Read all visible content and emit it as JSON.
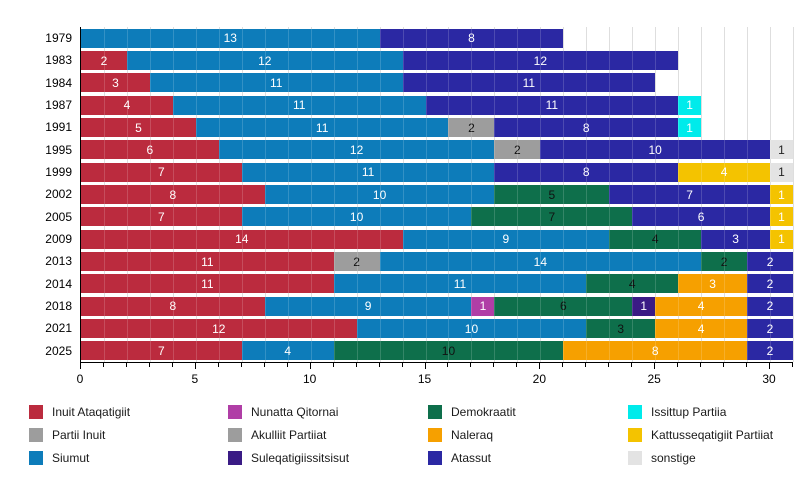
{
  "chart_data": {
    "type": "bar",
    "variant": "horizontal-stacked",
    "title": "",
    "xlabel": "",
    "ylabel": "",
    "xlim": [
      0,
      31
    ],
    "x_major_ticks": [
      0,
      5,
      10,
      15,
      20,
      25,
      30
    ],
    "x_minor_step": 1,
    "grid": "vertical-minor",
    "legend_position": "bottom",
    "legend_columns": 4,
    "categories": [
      "1979",
      "1983",
      "1984",
      "1987",
      "1991",
      "1995",
      "1999",
      "2002",
      "2005",
      "2009",
      "2013",
      "2014",
      "2018",
      "2021",
      "2025"
    ],
    "parties": [
      {
        "id": "ia",
        "name": "Inuit Ataqatigiit",
        "color": "#bb2b3e",
        "text_color": "#ffffff"
      },
      {
        "id": "pi",
        "name": "Partii Inuit",
        "color": "#9d9d9d",
        "text_color": "#111111"
      },
      {
        "id": "siumut",
        "name": "Siumut",
        "color": "#0d7cba",
        "text_color": "#ffffff"
      },
      {
        "id": "nq",
        "name": "Nunatta Qitornai",
        "color": "#b03ea6",
        "text_color": "#ffffff"
      },
      {
        "id": "ap",
        "name": "Akulliit Partiiat",
        "color": "#9d9d9d",
        "text_color": "#111111"
      },
      {
        "id": "sul",
        "name": "Suleqatigiissitsisut",
        "color": "#3a1b85",
        "text_color": "#ffffff"
      },
      {
        "id": "dem",
        "name": "Demokraatit",
        "color": "#0e6f4b",
        "text_color": "#111111"
      },
      {
        "id": "nal",
        "name": "Naleraq",
        "color": "#f6a000",
        "text_color": "#ffffff"
      },
      {
        "id": "ata",
        "name": "Atassut",
        "color": "#2b28a3",
        "text_color": "#ffffff"
      },
      {
        "id": "ip",
        "name": "Issittup Partiia",
        "color": "#00ebeb",
        "text_color": "#ffffff"
      },
      {
        "id": "kp",
        "name": "Kattusseqatigiit Partiiat",
        "color": "#f4c300",
        "text_color": "#ffffff"
      },
      {
        "id": "sonst",
        "name": "sonstige",
        "color": "#e3e3e3",
        "text_color": "#222222"
      }
    ],
    "rows": [
      {
        "year": "1979",
        "segments": [
          {
            "party": "siumut",
            "value": 13
          },
          {
            "party": "ata",
            "value": 8
          }
        ]
      },
      {
        "year": "1983",
        "segments": [
          {
            "party": "ia",
            "value": 2
          },
          {
            "party": "siumut",
            "value": 12
          },
          {
            "party": "ata",
            "value": 12
          }
        ]
      },
      {
        "year": "1984",
        "segments": [
          {
            "party": "ia",
            "value": 3
          },
          {
            "party": "siumut",
            "value": 11
          },
          {
            "party": "ata",
            "value": 11
          }
        ]
      },
      {
        "year": "1987",
        "segments": [
          {
            "party": "ia",
            "value": 4
          },
          {
            "party": "siumut",
            "value": 11
          },
          {
            "party": "ata",
            "value": 11
          },
          {
            "party": "ip",
            "value": 1
          }
        ]
      },
      {
        "year": "1991",
        "segments": [
          {
            "party": "ia",
            "value": 5
          },
          {
            "party": "siumut",
            "value": 11
          },
          {
            "party": "ap",
            "value": 2
          },
          {
            "party": "ata",
            "value": 8
          },
          {
            "party": "ip",
            "value": 1
          }
        ]
      },
      {
        "year": "1995",
        "segments": [
          {
            "party": "ia",
            "value": 6
          },
          {
            "party": "siumut",
            "value": 12
          },
          {
            "party": "ap",
            "value": 2
          },
          {
            "party": "ata",
            "value": 10
          },
          {
            "party": "sonst",
            "value": 1
          }
        ]
      },
      {
        "year": "1999",
        "segments": [
          {
            "party": "ia",
            "value": 7
          },
          {
            "party": "siumut",
            "value": 11
          },
          {
            "party": "ata",
            "value": 8
          },
          {
            "party": "kp",
            "value": 4
          },
          {
            "party": "sonst",
            "value": 1
          }
        ]
      },
      {
        "year": "2002",
        "segments": [
          {
            "party": "ia",
            "value": 8
          },
          {
            "party": "siumut",
            "value": 10
          },
          {
            "party": "dem",
            "value": 5
          },
          {
            "party": "ata",
            "value": 7
          },
          {
            "party": "kp",
            "value": 1
          }
        ]
      },
      {
        "year": "2005",
        "segments": [
          {
            "party": "ia",
            "value": 7
          },
          {
            "party": "siumut",
            "value": 10
          },
          {
            "party": "dem",
            "value": 7
          },
          {
            "party": "ata",
            "value": 6
          },
          {
            "party": "kp",
            "value": 1
          }
        ]
      },
      {
        "year": "2009",
        "segments": [
          {
            "party": "ia",
            "value": 14
          },
          {
            "party": "siumut",
            "value": 9
          },
          {
            "party": "dem",
            "value": 4
          },
          {
            "party": "ata",
            "value": 3
          },
          {
            "party": "kp",
            "value": 1
          }
        ]
      },
      {
        "year": "2013",
        "segments": [
          {
            "party": "ia",
            "value": 11
          },
          {
            "party": "pi",
            "value": 2
          },
          {
            "party": "siumut",
            "value": 14
          },
          {
            "party": "dem",
            "value": 2
          },
          {
            "party": "ata",
            "value": 2
          }
        ]
      },
      {
        "year": "2014",
        "segments": [
          {
            "party": "ia",
            "value": 11
          },
          {
            "party": "siumut",
            "value": 11
          },
          {
            "party": "dem",
            "value": 4
          },
          {
            "party": "nal",
            "value": 3
          },
          {
            "party": "ata",
            "value": 2
          }
        ]
      },
      {
        "year": "2018",
        "segments": [
          {
            "party": "ia",
            "value": 8
          },
          {
            "party": "siumut",
            "value": 9
          },
          {
            "party": "nq",
            "value": 1
          },
          {
            "party": "dem",
            "value": 6
          },
          {
            "party": "sul",
            "value": 1
          },
          {
            "party": "nal",
            "value": 4
          },
          {
            "party": "ata",
            "value": 2
          }
        ]
      },
      {
        "year": "2021",
        "segments": [
          {
            "party": "ia",
            "value": 12
          },
          {
            "party": "siumut",
            "value": 10
          },
          {
            "party": "dem",
            "value": 3
          },
          {
            "party": "nal",
            "value": 4
          },
          {
            "party": "ata",
            "value": 2
          }
        ]
      },
      {
        "year": "2025",
        "segments": [
          {
            "party": "ia",
            "value": 7
          },
          {
            "party": "siumut",
            "value": 4
          },
          {
            "party": "dem",
            "value": 10
          },
          {
            "party": "nal",
            "value": 8
          },
          {
            "party": "ata",
            "value": 2
          }
        ]
      }
    ],
    "colors": {
      "gridline": "#d8d8d8",
      "axis": "#000000"
    }
  }
}
